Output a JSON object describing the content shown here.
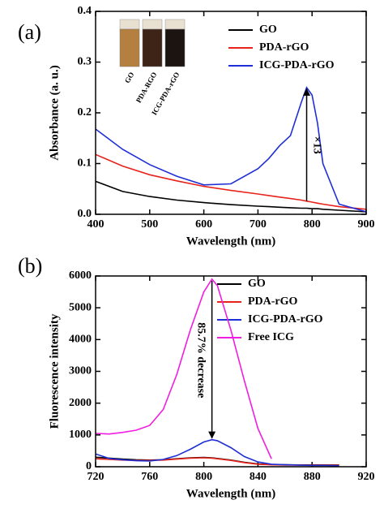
{
  "chart_data": [
    {
      "type": "line",
      "panel_label": "(a)",
      "x_label": "Wavelength (nm)",
      "y_label": "Absorbance (a. u.)",
      "x": [
        400,
        450,
        500,
        550,
        600,
        650,
        700,
        720,
        740,
        760,
        780,
        790,
        800,
        810,
        820,
        850,
        900
      ],
      "series": [
        {
          "name": "GO",
          "color": "#000000",
          "values": [
            0.065,
            0.045,
            0.035,
            0.028,
            0.023,
            0.019,
            0.016,
            0.015,
            0.014,
            0.013,
            0.012,
            0.012,
            0.011,
            0.011,
            0.01,
            0.008,
            0.005
          ]
        },
        {
          "name": "PDA-rGO",
          "color": "#e8231c",
          "values": [
            0.118,
            0.095,
            0.078,
            0.066,
            0.055,
            0.047,
            0.04,
            0.037,
            0.034,
            0.031,
            0.028,
            0.026,
            0.024,
            0.022,
            0.02,
            0.015,
            0.01
          ]
        },
        {
          "name": "ICG-PDA-rGO",
          "color": "#1f2fd6",
          "values": [
            0.168,
            0.128,
            0.098,
            0.075,
            0.058,
            0.06,
            0.09,
            0.11,
            0.135,
            0.155,
            0.22,
            0.25,
            0.235,
            0.18,
            0.1,
            0.02,
            0.005
          ]
        }
      ],
      "xlim": [
        400,
        900
      ],
      "ylim": [
        0,
        0.4
      ],
      "xticks": [
        400,
        500,
        600,
        700,
        800,
        900
      ],
      "yticks": [
        {
          "value": 0,
          "label": "0.0"
        },
        0.1,
        0.2,
        0.3,
        0.4
      ],
      "annotation": "×13",
      "inset_labels": [
        "GO",
        "PDA-RGO",
        "ICG-PDA-rGO"
      ]
    },
    {
      "type": "line",
      "panel_label": "(b)",
      "x_label": "Wavelength (nm)",
      "y_label": "Fluorescence intensity",
      "x": [
        720,
        730,
        740,
        750,
        760,
        770,
        780,
        790,
        800,
        806,
        810,
        820,
        830,
        840,
        850,
        860,
        870,
        880,
        890,
        900
      ],
      "series": [
        {
          "name": "GO",
          "color": "#000000",
          "values": [
            300,
            270,
            240,
            220,
            210,
            220,
            250,
            280,
            290,
            280,
            260,
            210,
            140,
            90,
            70,
            60,
            55,
            55,
            55,
            55
          ]
        },
        {
          "name": "PDA-rGO",
          "color": "#e8231c",
          "values": [
            250,
            230,
            210,
            200,
            200,
            210,
            240,
            270,
            280,
            270,
            250,
            200,
            130,
            80,
            60,
            50,
            50,
            50,
            50,
            50
          ]
        },
        {
          "name": "ICG-PDA-rGO",
          "color": "#1f2fd6",
          "values": [
            400,
            260,
            220,
            190,
            180,
            230,
            350,
            550,
            780,
            850,
            820,
            600,
            320,
            150,
            80,
            60,
            50,
            40,
            40,
            30
          ]
        },
        {
          "name": "Free ICG",
          "color": "#f01ee0",
          "values": [
            1050,
            1030,
            1080,
            1150,
            1300,
            1800,
            2900,
            4300,
            5500,
            5900,
            5700,
            4300,
            2700,
            1200,
            250,
            null,
            null,
            null,
            null,
            null
          ]
        }
      ],
      "xlim": [
        720,
        920
      ],
      "ylim": [
        0,
        6000
      ],
      "xticks": [
        720,
        760,
        800,
        840,
        880,
        920
      ],
      "yticks": [
        0,
        1000,
        2000,
        3000,
        4000,
        5000,
        6000
      ],
      "annotation": "85.7% decrease"
    }
  ]
}
